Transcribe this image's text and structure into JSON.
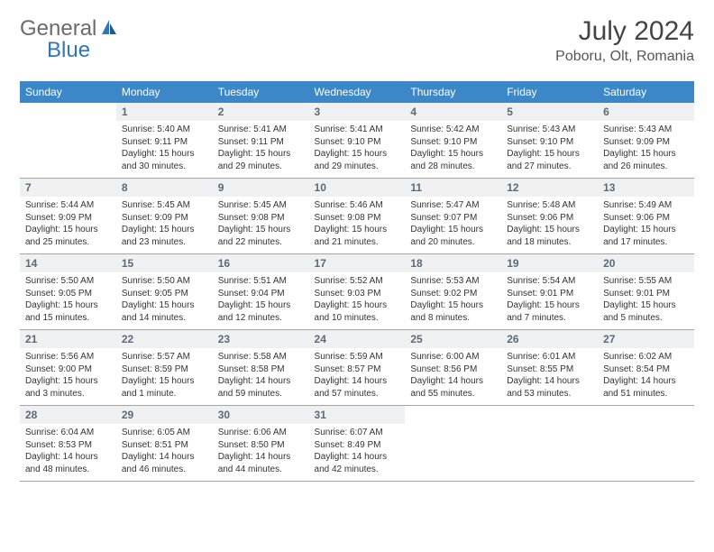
{
  "logo": {
    "general": "General",
    "blue": "Blue"
  },
  "title": "July 2024",
  "location": "Poboru, Olt, Romania",
  "colors": {
    "header_bg": "#3c87c7",
    "header_text": "#ffffff",
    "daynum_bg": "#eef0f2",
    "daynum_text": "#5a6a78",
    "border": "#9aa8b5",
    "logo_gray": "#6b6b6b",
    "logo_blue": "#2f76b9"
  },
  "weekdays": [
    "Sunday",
    "Monday",
    "Tuesday",
    "Wednesday",
    "Thursday",
    "Friday",
    "Saturday"
  ],
  "weeks": [
    [
      {
        "day": "",
        "sunrise": "",
        "sunset": "",
        "daylight": ""
      },
      {
        "day": "1",
        "sunrise": "Sunrise: 5:40 AM",
        "sunset": "Sunset: 9:11 PM",
        "daylight": "Daylight: 15 hours and 30 minutes."
      },
      {
        "day": "2",
        "sunrise": "Sunrise: 5:41 AM",
        "sunset": "Sunset: 9:11 PM",
        "daylight": "Daylight: 15 hours and 29 minutes."
      },
      {
        "day": "3",
        "sunrise": "Sunrise: 5:41 AM",
        "sunset": "Sunset: 9:10 PM",
        "daylight": "Daylight: 15 hours and 29 minutes."
      },
      {
        "day": "4",
        "sunrise": "Sunrise: 5:42 AM",
        "sunset": "Sunset: 9:10 PM",
        "daylight": "Daylight: 15 hours and 28 minutes."
      },
      {
        "day": "5",
        "sunrise": "Sunrise: 5:43 AM",
        "sunset": "Sunset: 9:10 PM",
        "daylight": "Daylight: 15 hours and 27 minutes."
      },
      {
        "day": "6",
        "sunrise": "Sunrise: 5:43 AM",
        "sunset": "Sunset: 9:09 PM",
        "daylight": "Daylight: 15 hours and 26 minutes."
      }
    ],
    [
      {
        "day": "7",
        "sunrise": "Sunrise: 5:44 AM",
        "sunset": "Sunset: 9:09 PM",
        "daylight": "Daylight: 15 hours and 25 minutes."
      },
      {
        "day": "8",
        "sunrise": "Sunrise: 5:45 AM",
        "sunset": "Sunset: 9:09 PM",
        "daylight": "Daylight: 15 hours and 23 minutes."
      },
      {
        "day": "9",
        "sunrise": "Sunrise: 5:45 AM",
        "sunset": "Sunset: 9:08 PM",
        "daylight": "Daylight: 15 hours and 22 minutes."
      },
      {
        "day": "10",
        "sunrise": "Sunrise: 5:46 AM",
        "sunset": "Sunset: 9:08 PM",
        "daylight": "Daylight: 15 hours and 21 minutes."
      },
      {
        "day": "11",
        "sunrise": "Sunrise: 5:47 AM",
        "sunset": "Sunset: 9:07 PM",
        "daylight": "Daylight: 15 hours and 20 minutes."
      },
      {
        "day": "12",
        "sunrise": "Sunrise: 5:48 AM",
        "sunset": "Sunset: 9:06 PM",
        "daylight": "Daylight: 15 hours and 18 minutes."
      },
      {
        "day": "13",
        "sunrise": "Sunrise: 5:49 AM",
        "sunset": "Sunset: 9:06 PM",
        "daylight": "Daylight: 15 hours and 17 minutes."
      }
    ],
    [
      {
        "day": "14",
        "sunrise": "Sunrise: 5:50 AM",
        "sunset": "Sunset: 9:05 PM",
        "daylight": "Daylight: 15 hours and 15 minutes."
      },
      {
        "day": "15",
        "sunrise": "Sunrise: 5:50 AM",
        "sunset": "Sunset: 9:05 PM",
        "daylight": "Daylight: 15 hours and 14 minutes."
      },
      {
        "day": "16",
        "sunrise": "Sunrise: 5:51 AM",
        "sunset": "Sunset: 9:04 PM",
        "daylight": "Daylight: 15 hours and 12 minutes."
      },
      {
        "day": "17",
        "sunrise": "Sunrise: 5:52 AM",
        "sunset": "Sunset: 9:03 PM",
        "daylight": "Daylight: 15 hours and 10 minutes."
      },
      {
        "day": "18",
        "sunrise": "Sunrise: 5:53 AM",
        "sunset": "Sunset: 9:02 PM",
        "daylight": "Daylight: 15 hours and 8 minutes."
      },
      {
        "day": "19",
        "sunrise": "Sunrise: 5:54 AM",
        "sunset": "Sunset: 9:01 PM",
        "daylight": "Daylight: 15 hours and 7 minutes."
      },
      {
        "day": "20",
        "sunrise": "Sunrise: 5:55 AM",
        "sunset": "Sunset: 9:01 PM",
        "daylight": "Daylight: 15 hours and 5 minutes."
      }
    ],
    [
      {
        "day": "21",
        "sunrise": "Sunrise: 5:56 AM",
        "sunset": "Sunset: 9:00 PM",
        "daylight": "Daylight: 15 hours and 3 minutes."
      },
      {
        "day": "22",
        "sunrise": "Sunrise: 5:57 AM",
        "sunset": "Sunset: 8:59 PM",
        "daylight": "Daylight: 15 hours and 1 minute."
      },
      {
        "day": "23",
        "sunrise": "Sunrise: 5:58 AM",
        "sunset": "Sunset: 8:58 PM",
        "daylight": "Daylight: 14 hours and 59 minutes."
      },
      {
        "day": "24",
        "sunrise": "Sunrise: 5:59 AM",
        "sunset": "Sunset: 8:57 PM",
        "daylight": "Daylight: 14 hours and 57 minutes."
      },
      {
        "day": "25",
        "sunrise": "Sunrise: 6:00 AM",
        "sunset": "Sunset: 8:56 PM",
        "daylight": "Daylight: 14 hours and 55 minutes."
      },
      {
        "day": "26",
        "sunrise": "Sunrise: 6:01 AM",
        "sunset": "Sunset: 8:55 PM",
        "daylight": "Daylight: 14 hours and 53 minutes."
      },
      {
        "day": "27",
        "sunrise": "Sunrise: 6:02 AM",
        "sunset": "Sunset: 8:54 PM",
        "daylight": "Daylight: 14 hours and 51 minutes."
      }
    ],
    [
      {
        "day": "28",
        "sunrise": "Sunrise: 6:04 AM",
        "sunset": "Sunset: 8:53 PM",
        "daylight": "Daylight: 14 hours and 48 minutes."
      },
      {
        "day": "29",
        "sunrise": "Sunrise: 6:05 AM",
        "sunset": "Sunset: 8:51 PM",
        "daylight": "Daylight: 14 hours and 46 minutes."
      },
      {
        "day": "30",
        "sunrise": "Sunrise: 6:06 AM",
        "sunset": "Sunset: 8:50 PM",
        "daylight": "Daylight: 14 hours and 44 minutes."
      },
      {
        "day": "31",
        "sunrise": "Sunrise: 6:07 AM",
        "sunset": "Sunset: 8:49 PM",
        "daylight": "Daylight: 14 hours and 42 minutes."
      },
      {
        "day": "",
        "sunrise": "",
        "sunset": "",
        "daylight": ""
      },
      {
        "day": "",
        "sunrise": "",
        "sunset": "",
        "daylight": ""
      },
      {
        "day": "",
        "sunrise": "",
        "sunset": "",
        "daylight": ""
      }
    ]
  ]
}
